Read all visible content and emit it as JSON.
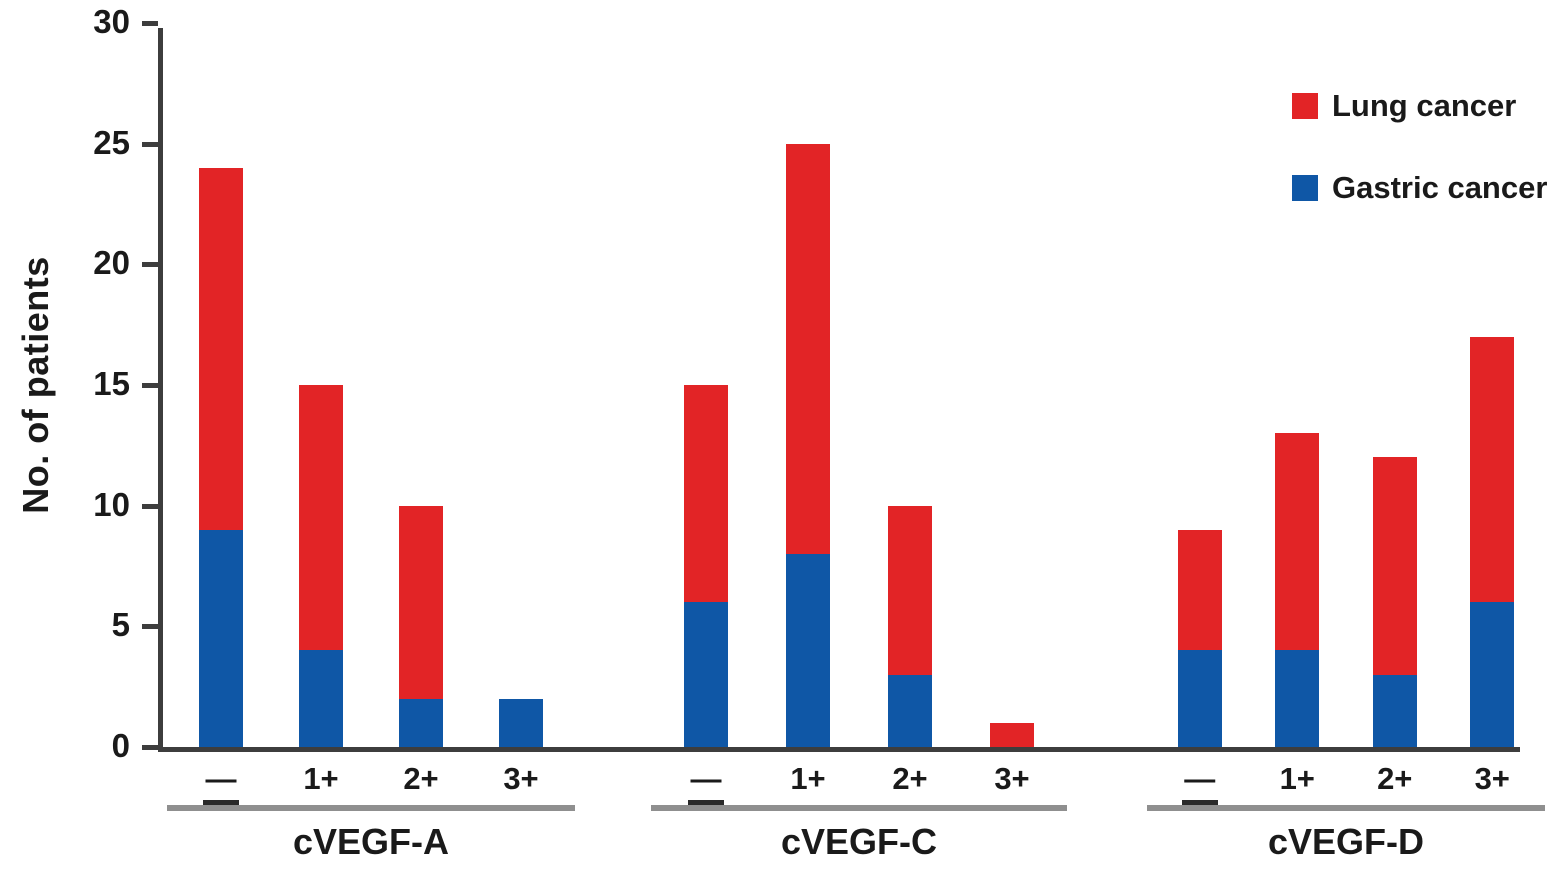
{
  "chart_data": {
    "type": "bar",
    "stacked": true,
    "title": "",
    "xlabel": "",
    "ylabel": "No. of patients",
    "ylim": [
      0,
      30
    ],
    "yticks": [
      0,
      5,
      10,
      15,
      20,
      25,
      30
    ],
    "grid": false,
    "legend_position": "top-right",
    "legend": [
      {
        "label": "Lung cancer",
        "color": "#e22426"
      },
      {
        "label": "Gastric cancer",
        "color": "#0f57a6"
      }
    ],
    "groups": [
      {
        "label": "cVEGF-A",
        "categories": [
          "—",
          "1+",
          "2+",
          "3+"
        ],
        "series": [
          {
            "name": "Gastric cancer",
            "color": "#0f57a6",
            "values": [
              9,
              4,
              2,
              2
            ]
          },
          {
            "name": "Lung cancer",
            "color": "#e22426",
            "values": [
              15,
              11,
              8,
              0
            ]
          }
        ],
        "totals": [
          24,
          15,
          10,
          2
        ]
      },
      {
        "label": "cVEGF-C",
        "categories": [
          "—",
          "1+",
          "2+",
          "3+"
        ],
        "series": [
          {
            "name": "Gastric cancer",
            "color": "#0f57a6",
            "values": [
              6,
              8,
              3,
              0
            ]
          },
          {
            "name": "Lung cancer",
            "color": "#e22426",
            "values": [
              9,
              17,
              7,
              1
            ]
          }
        ],
        "totals": [
          15,
          25,
          10,
          1
        ]
      },
      {
        "label": "cVEGF-D",
        "categories": [
          "—",
          "1+",
          "2+",
          "3+"
        ],
        "series": [
          {
            "name": "Gastric cancer",
            "color": "#0f57a6",
            "values": [
              4,
              4,
              3,
              6
            ]
          },
          {
            "name": "Lung cancer",
            "color": "#e22426",
            "values": [
              5,
              9,
              9,
              11
            ]
          }
        ],
        "totals": [
          9,
          13,
          12,
          17
        ]
      }
    ]
  }
}
